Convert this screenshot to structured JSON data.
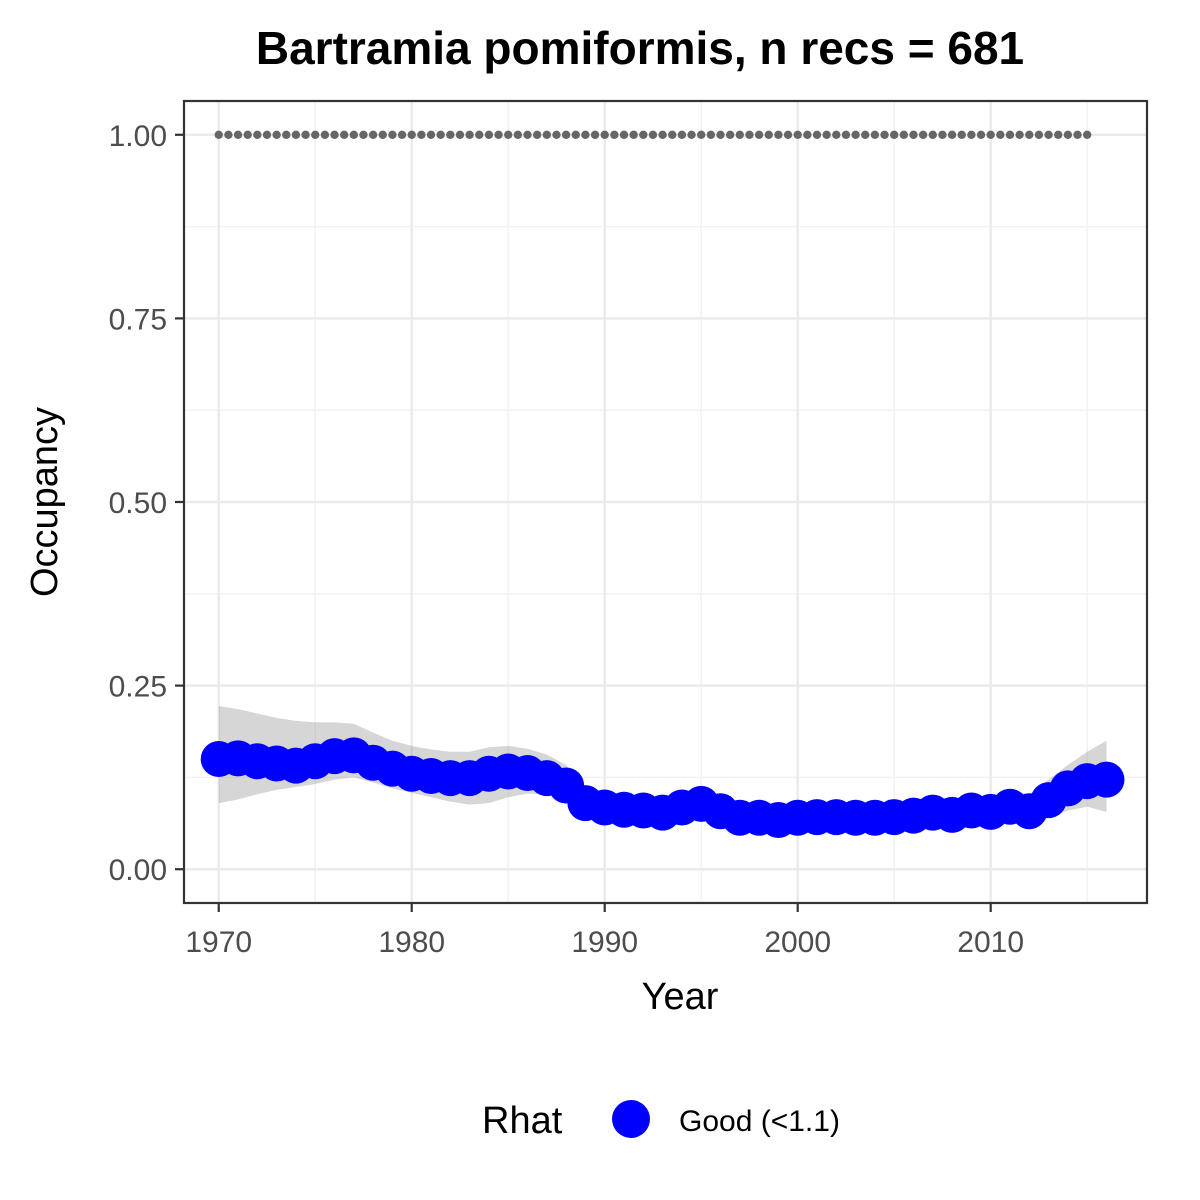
{
  "chart_data": {
    "type": "line",
    "title": "Bartramia pomiformis, n recs = 681",
    "xlabel": "Year",
    "ylabel": "Occupancy",
    "xlim": [
      1968.2,
      2018.1
    ],
    "ylim": [
      -0.046,
      1.046
    ],
    "x_ticks": [
      1970,
      1980,
      1990,
      2000,
      2010
    ],
    "x_tick_labels": [
      "1970",
      "1980",
      "1990",
      "2000",
      "2010"
    ],
    "y_ticks": [
      0,
      0.25,
      0.5,
      0.75,
      1.0
    ],
    "y_tick_labels": [
      "0.00",
      "0.25",
      "0.50",
      "0.75",
      "1.00"
    ],
    "grid": true,
    "legend": {
      "title": "Rhat",
      "position": "bottom",
      "entries": [
        {
          "label": "Good (<1.1)",
          "color": "#0000ff"
        }
      ]
    },
    "x": [
      1970,
      1971,
      1972,
      1973,
      1974,
      1975,
      1976,
      1977,
      1978,
      1979,
      1980,
      1981,
      1982,
      1983,
      1984,
      1985,
      1986,
      1987,
      1988,
      1989,
      1990,
      1991,
      1992,
      1993,
      1994,
      1995,
      1996,
      1997,
      1998,
      1999,
      2000,
      2001,
      2002,
      2003,
      2004,
      2005,
      2006,
      2007,
      2008,
      2009,
      2010,
      2011,
      2012,
      2013,
      2014,
      2015,
      2016
    ],
    "series": [
      {
        "values": [
          0.15,
          0.151,
          0.147,
          0.144,
          0.141,
          0.147,
          0.154,
          0.155,
          0.145,
          0.137,
          0.13,
          0.127,
          0.124,
          0.124,
          0.13,
          0.133,
          0.131,
          0.124,
          0.114,
          0.09,
          0.084,
          0.081,
          0.08,
          0.077,
          0.084,
          0.089,
          0.079,
          0.07,
          0.07,
          0.067,
          0.07,
          0.071,
          0.071,
          0.07,
          0.07,
          0.071,
          0.073,
          0.077,
          0.074,
          0.08,
          0.078,
          0.085,
          0.079,
          0.094,
          0.11,
          0.12,
          0.122
        ],
        "lower": [
          0.09,
          0.095,
          0.102,
          0.108,
          0.112,
          0.116,
          0.122,
          0.125,
          0.118,
          0.11,
          0.104,
          0.098,
          0.092,
          0.088,
          0.09,
          0.098,
          0.103,
          0.102,
          0.095,
          0.075,
          0.068,
          0.064,
          0.062,
          0.06,
          0.065,
          0.068,
          0.062,
          0.056,
          0.054,
          0.053,
          0.055,
          0.056,
          0.056,
          0.056,
          0.056,
          0.056,
          0.058,
          0.06,
          0.058,
          0.062,
          0.06,
          0.064,
          0.06,
          0.07,
          0.08,
          0.085,
          0.078
        ],
        "upper": [
          0.222,
          0.218,
          0.212,
          0.206,
          0.202,
          0.2,
          0.2,
          0.198,
          0.186,
          0.175,
          0.168,
          0.163,
          0.16,
          0.16,
          0.166,
          0.168,
          0.164,
          0.156,
          0.142,
          0.112,
          0.104,
          0.101,
          0.1,
          0.097,
          0.104,
          0.112,
          0.1,
          0.09,
          0.088,
          0.085,
          0.088,
          0.089,
          0.089,
          0.088,
          0.088,
          0.089,
          0.092,
          0.096,
          0.094,
          0.1,
          0.098,
          0.108,
          0.102,
          0.122,
          0.142,
          0.16,
          0.175
        ],
        "color": "#0000ff"
      },
      {
        "x": [
          1970,
          1971,
          1972,
          1973,
          1974,
          1975,
          1976,
          1977,
          1978,
          1979,
          1980,
          1981,
          1982,
          1983,
          1984,
          1985,
          1986,
          1987,
          1988,
          1989,
          1990,
          1991,
          1992,
          1993,
          1994,
          1995,
          1996,
          1997,
          1998,
          1999,
          2000,
          2001,
          2002,
          2003,
          2004,
          2005,
          2006,
          2007,
          2008,
          2009,
          2010,
          2011,
          2012,
          2013,
          2014,
          2015
        ],
        "values": [
          1,
          1,
          1,
          1,
          1,
          1,
          1,
          1,
          1,
          1,
          1,
          1,
          1,
          1,
          1,
          1,
          1,
          1,
          1,
          1,
          1,
          1,
          1,
          1,
          1,
          1,
          1,
          1,
          1,
          1,
          1,
          1,
          1,
          1,
          1,
          1,
          1,
          1,
          1,
          1,
          1,
          1,
          1,
          1,
          1,
          1
        ],
        "color": "#666666"
      }
    ]
  }
}
